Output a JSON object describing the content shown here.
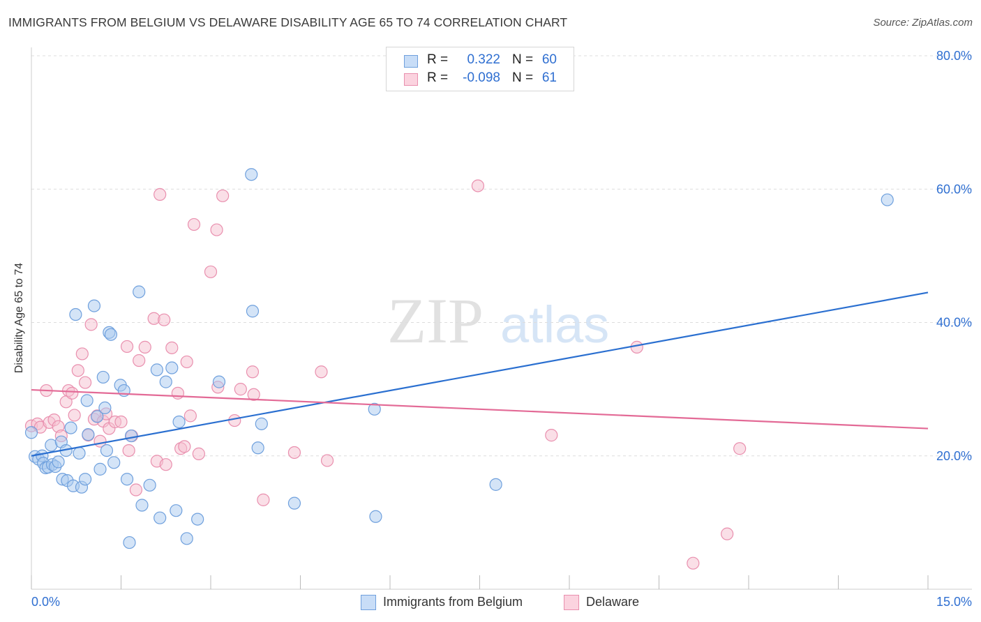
{
  "title": "IMMIGRANTS FROM BELGIUM VS DELAWARE DISABILITY AGE 65 TO 74 CORRELATION CHART",
  "source": "Source: ZipAtlas.com",
  "watermark": {
    "zip": "ZIP",
    "atlas": "atlas"
  },
  "stats_box": {
    "rows": [
      {
        "r_label": "R =",
        "r_value": "0.322",
        "n_label": "N =",
        "n_value": "60",
        "color": "#9dc3f2"
      },
      {
        "r_label": "R =",
        "r_value": "-0.098",
        "n_label": "N =",
        "n_value": "61",
        "color": "#f5b8cc"
      }
    ]
  },
  "legend": [
    {
      "label": "Immigrants from Belgium",
      "color": "#9dc3f2"
    },
    {
      "label": "Delaware",
      "color": "#f5b8cc"
    }
  ],
  "colors": {
    "blue_fill": "#a9c9f0",
    "blue_stroke": "#6fa0dd",
    "blue_line": "#2a6fd0",
    "pink_fill": "#f6bfd0",
    "pink_stroke": "#e98fae",
    "pink_line": "#e36a96",
    "axis_label": "#2f6fd1",
    "grid": "#dddddd"
  },
  "chart_data": {
    "type": "scatter",
    "title": "IMMIGRANTS FROM BELGIUM VS DELAWARE DISABILITY AGE 65 TO 74 CORRELATION CHART",
    "xlabel": "",
    "ylabel": "Disability Age 65 to 74",
    "xlim": [
      0,
      15
    ],
    "ylim": [
      0,
      80
    ],
    "x_tick_labels": {
      "0": "0.0%",
      "15": "15.0%"
    },
    "y_ticks": [
      20,
      40,
      60,
      80
    ],
    "y_tick_labels": [
      "20.0%",
      "40.0%",
      "60.0%",
      "80.0%"
    ],
    "grid": true,
    "legend_position": "bottom",
    "series": [
      {
        "name": "Immigrants from Belgium",
        "trend": [
          [
            0,
            20.0
          ],
          [
            15,
            44.5
          ]
        ],
        "points": [
          [
            0.0,
            23.5
          ],
          [
            0.06,
            19.9
          ],
          [
            0.12,
            19.5
          ],
          [
            0.18,
            20.0
          ],
          [
            0.2,
            18.9
          ],
          [
            0.24,
            18.2
          ],
          [
            0.28,
            18.3
          ],
          [
            0.33,
            21.6
          ],
          [
            0.35,
            18.7
          ],
          [
            0.4,
            18.4
          ],
          [
            0.45,
            19.1
          ],
          [
            0.5,
            22.1
          ],
          [
            0.52,
            16.5
          ],
          [
            0.58,
            20.8
          ],
          [
            0.6,
            16.3
          ],
          [
            0.66,
            24.2
          ],
          [
            0.7,
            15.5
          ],
          [
            0.74,
            41.2
          ],
          [
            0.8,
            20.4
          ],
          [
            0.84,
            15.3
          ],
          [
            0.9,
            16.5
          ],
          [
            0.93,
            28.3
          ],
          [
            0.95,
            23.2
          ],
          [
            1.05,
            42.5
          ],
          [
            1.1,
            25.9
          ],
          [
            1.15,
            18.0
          ],
          [
            1.2,
            31.8
          ],
          [
            1.23,
            27.2
          ],
          [
            1.26,
            20.8
          ],
          [
            1.3,
            38.5
          ],
          [
            1.33,
            38.2
          ],
          [
            1.38,
            19.0
          ],
          [
            1.49,
            30.6
          ],
          [
            1.55,
            29.8
          ],
          [
            1.6,
            16.5
          ],
          [
            1.64,
            7.0
          ],
          [
            1.67,
            23.0
          ],
          [
            1.8,
            44.6
          ],
          [
            1.85,
            12.6
          ],
          [
            1.98,
            15.6
          ],
          [
            2.1,
            32.9
          ],
          [
            2.15,
            10.7
          ],
          [
            2.25,
            31.1
          ],
          [
            2.35,
            33.2
          ],
          [
            2.42,
            11.8
          ],
          [
            2.47,
            25.1
          ],
          [
            2.6,
            7.6
          ],
          [
            2.78,
            10.5
          ],
          [
            3.14,
            31.1
          ],
          [
            3.68,
            62.2
          ],
          [
            3.7,
            41.7
          ],
          [
            3.79,
            21.2
          ],
          [
            3.85,
            24.8
          ],
          [
            4.4,
            12.9
          ],
          [
            5.74,
            27.0
          ],
          [
            5.76,
            10.9
          ],
          [
            7.77,
            15.7
          ],
          [
            14.32,
            58.4
          ]
        ]
      },
      {
        "name": "Delaware",
        "trend": [
          [
            0,
            29.9
          ],
          [
            15,
            24.1
          ]
        ],
        "points": [
          [
            0.0,
            24.5
          ],
          [
            0.1,
            24.8
          ],
          [
            0.15,
            24.3
          ],
          [
            0.25,
            29.8
          ],
          [
            0.3,
            25.0
          ],
          [
            0.38,
            25.4
          ],
          [
            0.45,
            24.4
          ],
          [
            0.5,
            23.0
          ],
          [
            0.58,
            28.1
          ],
          [
            0.62,
            29.8
          ],
          [
            0.68,
            29.4
          ],
          [
            0.72,
            26.1
          ],
          [
            0.78,
            32.8
          ],
          [
            0.85,
            35.3
          ],
          [
            0.9,
            31.0
          ],
          [
            0.95,
            23.1
          ],
          [
            1.0,
            39.7
          ],
          [
            1.05,
            25.5
          ],
          [
            1.1,
            26.0
          ],
          [
            1.15,
            22.2
          ],
          [
            1.2,
            25.2
          ],
          [
            1.25,
            26.3
          ],
          [
            1.3,
            24.1
          ],
          [
            1.4,
            25.1
          ],
          [
            1.5,
            25.1
          ],
          [
            1.6,
            36.4
          ],
          [
            1.63,
            20.8
          ],
          [
            1.68,
            23.0
          ],
          [
            1.75,
            14.9
          ],
          [
            1.8,
            34.3
          ],
          [
            1.9,
            36.3
          ],
          [
            2.05,
            40.6
          ],
          [
            2.1,
            19.2
          ],
          [
            2.15,
            59.2
          ],
          [
            2.22,
            40.4
          ],
          [
            2.25,
            18.7
          ],
          [
            2.35,
            36.2
          ],
          [
            2.45,
            29.4
          ],
          [
            2.5,
            21.1
          ],
          [
            2.56,
            21.4
          ],
          [
            2.6,
            34.1
          ],
          [
            2.66,
            26.0
          ],
          [
            2.72,
            54.7
          ],
          [
            2.8,
            20.3
          ],
          [
            3.0,
            47.6
          ],
          [
            3.1,
            53.9
          ],
          [
            3.12,
            30.3
          ],
          [
            3.2,
            59.0
          ],
          [
            3.4,
            25.3
          ],
          [
            3.5,
            30.0
          ],
          [
            3.7,
            32.6
          ],
          [
            3.72,
            29.2
          ],
          [
            3.88,
            13.4
          ],
          [
            4.4,
            20.5
          ],
          [
            4.85,
            32.6
          ],
          [
            4.95,
            19.3
          ],
          [
            7.47,
            60.5
          ],
          [
            8.7,
            23.1
          ],
          [
            10.13,
            36.3
          ],
          [
            11.07,
            3.9
          ],
          [
            11.64,
            8.3
          ],
          [
            11.85,
            21.1
          ]
        ]
      }
    ]
  }
}
